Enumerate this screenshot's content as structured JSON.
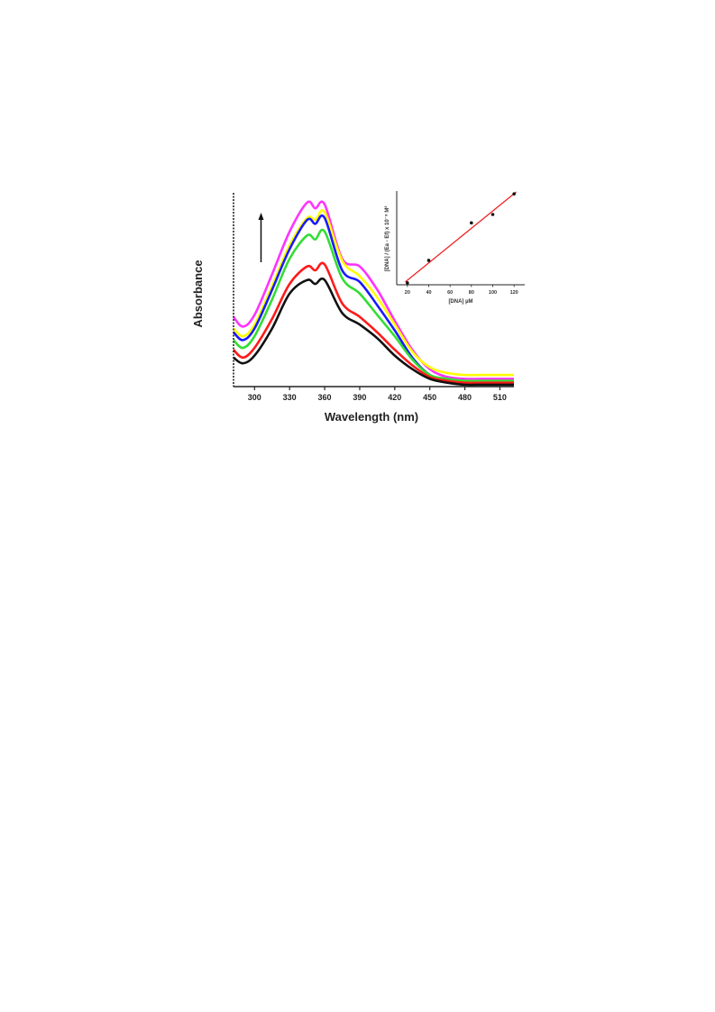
{
  "chart_data": [
    {
      "type": "line",
      "xlabel": "Wavelength (nm)",
      "ylabel": "Absorbance",
      "xlim": [
        282,
        522
      ],
      "ylim": [
        0,
        1
      ],
      "x_ticks": [
        300,
        330,
        360,
        390,
        420,
        450,
        480,
        510
      ],
      "x_tick_labels": [
        "300",
        "330",
        "360",
        "390",
        "420",
        "450",
        "480",
        "510"
      ],
      "annotation": "arrow pointing up (increasing absorbance with DNA addition)",
      "x": [
        282,
        290,
        300,
        315,
        330,
        345,
        352,
        360,
        375,
        390,
        405,
        420,
        435,
        450,
        465,
        480,
        495,
        510,
        522
      ],
      "series": [
        {
          "color": "#ff33ff",
          "values": [
            0.36,
            0.31,
            0.37,
            0.58,
            0.8,
            0.95,
            0.92,
            0.94,
            0.66,
            0.62,
            0.5,
            0.34,
            0.19,
            0.09,
            0.05,
            0.04,
            0.04,
            0.04,
            0.04
          ]
        },
        {
          "color": "#ffff00",
          "values": [
            0.3,
            0.26,
            0.32,
            0.52,
            0.73,
            0.87,
            0.86,
            0.9,
            0.65,
            0.57,
            0.46,
            0.32,
            0.18,
            0.1,
            0.07,
            0.06,
            0.06,
            0.06,
            0.06
          ]
        },
        {
          "color": "#1a1aff",
          "values": [
            0.28,
            0.24,
            0.3,
            0.5,
            0.71,
            0.86,
            0.84,
            0.87,
            0.6,
            0.54,
            0.42,
            0.29,
            0.15,
            0.06,
            0.03,
            0.02,
            0.02,
            0.02,
            0.02
          ]
        },
        {
          "color": "#33dd33",
          "values": [
            0.24,
            0.2,
            0.26,
            0.45,
            0.66,
            0.78,
            0.76,
            0.8,
            0.56,
            0.48,
            0.37,
            0.26,
            0.14,
            0.06,
            0.04,
            0.03,
            0.03,
            0.03,
            0.03
          ]
        },
        {
          "color": "#ff1a1a",
          "values": [
            0.19,
            0.15,
            0.2,
            0.35,
            0.53,
            0.62,
            0.6,
            0.63,
            0.43,
            0.36,
            0.28,
            0.19,
            0.11,
            0.05,
            0.03,
            0.02,
            0.02,
            0.02,
            0.02
          ]
        },
        {
          "color": "#111111",
          "values": [
            0.15,
            0.12,
            0.16,
            0.3,
            0.48,
            0.55,
            0.53,
            0.55,
            0.38,
            0.32,
            0.25,
            0.16,
            0.09,
            0.04,
            0.02,
            0.01,
            0.01,
            0.01,
            0.01
          ]
        }
      ]
    },
    {
      "type": "scatter",
      "xlabel": "[DNA] µM",
      "ylabel": "[DNA] / (Ea - Ef) x 10⁻⁸ M²",
      "xlim": [
        10,
        130
      ],
      "ylim": [
        0,
        1
      ],
      "x_ticks": [
        20,
        40,
        60,
        80,
        100,
        120
      ],
      "x_tick_labels": [
        "20",
        "40",
        "60",
        "80",
        "100",
        "120"
      ],
      "points": [
        {
          "x": 20,
          "y": 0.02
        },
        {
          "x": 40,
          "y": 0.26
        },
        {
          "x": 80,
          "y": 0.66
        },
        {
          "x": 100,
          "y": 0.75
        },
        {
          "x": 120,
          "y": 0.97
        }
      ],
      "fit_line": {
        "x": [
          18,
          122
        ],
        "y": [
          0.03,
          0.99
        ],
        "color": "#ee2222"
      }
    }
  ]
}
